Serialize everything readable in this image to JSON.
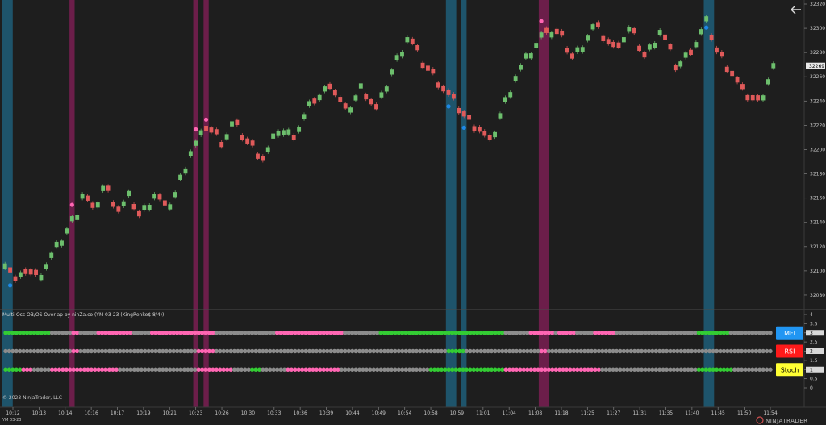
{
  "chart_data": {
    "type": "candlestick",
    "instrument_label": "YM 03-23",
    "indicator_title": "Multi-Osc OB/OS Overlap by ninZa.co (YM 03-23 (KingRenko$ 8/4))",
    "copyright": "© 2023 NinjaTrader, LLC",
    "brand": "NINJATRADER",
    "current_price_label": "32269",
    "current_price": 32269,
    "y_ticks": [
      32080,
      32100,
      32120,
      32140,
      32160,
      32180,
      32200,
      32220,
      32240,
      32260,
      32280,
      32300,
      32320
    ],
    "ylim": [
      32068,
      32322
    ],
    "x_ticks": [
      "10:12",
      "10:13",
      "10:14",
      "10:16",
      "10:17",
      "10:19",
      "10:21",
      "10:23",
      "10:26",
      "10:30",
      "10:33",
      "10:36",
      "10:39",
      "10:44",
      "10:49",
      "10:54",
      "10:58",
      "10:59",
      "11:01",
      "11:04",
      "11:08",
      "11:18",
      "11:25",
      "11:27",
      "11:31",
      "11:35",
      "11:40",
      "11:45",
      "11:50",
      "11:54"
    ],
    "close_path": [
      [
        0,
        32110
      ],
      [
        2,
        32090
      ],
      [
        4,
        32100
      ],
      [
        6,
        32094
      ],
      [
        10,
        32120
      ],
      [
        14,
        32150
      ],
      [
        15,
        32165
      ],
      [
        17,
        32148
      ],
      [
        19,
        32170
      ],
      [
        22,
        32150
      ],
      [
        24,
        32162
      ],
      [
        26,
        32145
      ],
      [
        29,
        32165
      ],
      [
        31,
        32150
      ],
      [
        33,
        32165
      ],
      [
        36,
        32200
      ],
      [
        39,
        32218
      ],
      [
        42,
        32206
      ],
      [
        44,
        32222
      ],
      [
        47,
        32205
      ],
      [
        50,
        32192
      ],
      [
        53,
        32218
      ],
      [
        56,
        32212
      ],
      [
        59,
        32236
      ],
      [
        63,
        32254
      ],
      [
        66,
        32230
      ],
      [
        69,
        32252
      ],
      [
        72,
        32232
      ],
      [
        75,
        32266
      ],
      [
        78,
        32294
      ],
      [
        81,
        32270
      ],
      [
        84,
        32255
      ],
      [
        87,
        32238
      ],
      [
        90,
        32222
      ],
      [
        92,
        32216
      ],
      [
        94,
        32204
      ],
      [
        96,
        32230
      ],
      [
        99,
        32262
      ],
      [
        102,
        32282
      ],
      [
        105,
        32300
      ],
      [
        106,
        32298
      ],
      [
        108,
        32290
      ],
      [
        110,
        32275
      ],
      [
        114,
        32302
      ],
      [
        118,
        32282
      ],
      [
        121,
        32300
      ],
      [
        124,
        32276
      ],
      [
        127,
        32300
      ],
      [
        130,
        32268
      ],
      [
        133,
        32282
      ],
      [
        136,
        32306
      ],
      [
        138,
        32280
      ],
      [
        141,
        32262
      ],
      [
        143,
        32246
      ],
      [
        146,
        32238
      ],
      [
        149,
        32270
      ]
    ],
    "oscillator_rows": [
      {
        "name": "MFI",
        "label": "MFI",
        "level": 3
      },
      {
        "name": "RSI",
        "label": "RSI",
        "level": 2
      },
      {
        "name": "Stoch",
        "label": "Stoch",
        "level": 1
      }
    ],
    "osc_levels": [
      4,
      3.5,
      3,
      2.5,
      2,
      1.5,
      1,
      0.5,
      0
    ],
    "colors": {
      "background": "#1e1e1e",
      "up": "#6dbf6d",
      "down": "#e05a5a",
      "oversold_band": "#1f5e79",
      "overbought_band": "#7a1f52",
      "overbought_dot": "#ff66b3",
      "oversold_dot": "#1e88e5",
      "neutral_dot": "#8c8c8c",
      "green_dot": "#33cc33",
      "mfi_label_bg": "#2196f3",
      "rsi_label_bg": "#ff1a1a",
      "stoch_label_bg": "#ffff33"
    }
  },
  "ui": {
    "back_icon": "arrow-left-icon"
  }
}
